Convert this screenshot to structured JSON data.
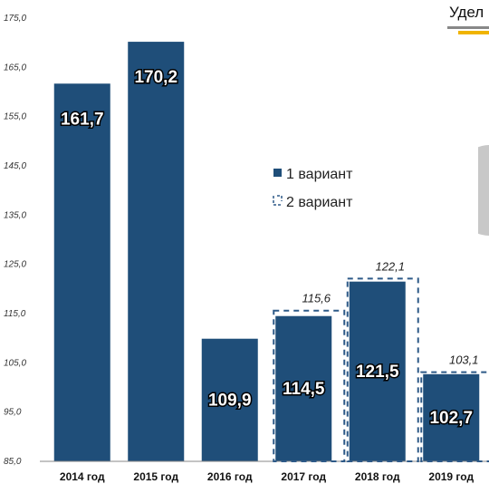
{
  "header": {
    "title_fragment": "Удел"
  },
  "colors": {
    "bar": "#1f4e79",
    "alt_outline": "#2e5a88",
    "grid": "#d9d9d9",
    "accent": "#f0b400",
    "decoration": "#c8c8c8"
  },
  "chart_data": {
    "type": "bar",
    "categories": [
      "2014 год",
      "2015 год",
      "2016 год",
      "2017 год",
      "2018 год",
      "2019 год"
    ],
    "series": [
      {
        "name": "1 вариант",
        "values": [
          161.7,
          170.2,
          109.9,
          114.5,
          121.5,
          102.7
        ]
      },
      {
        "name": "2 вариант",
        "values": [
          null,
          null,
          null,
          115.6,
          122.1,
          103.1
        ]
      }
    ],
    "value_labels": [
      "161,7",
      "170,2",
      "109,9",
      "114,5",
      "121,5",
      "102,7"
    ],
    "alt_value_labels": [
      "",
      "",
      "",
      "115,6",
      "122,1",
      "103,1"
    ],
    "ylim": [
      85,
      175
    ],
    "yticks": [
      85,
      95,
      105,
      115,
      125,
      135,
      145,
      155,
      165,
      175
    ],
    "ytick_labels": [
      "85,0",
      "95,0",
      "105,0",
      "115,0",
      "125,0",
      "135,0",
      "145,0",
      "155,0",
      "165,0",
      "175,0"
    ],
    "grid": false,
    "legend": {
      "position": "center-right",
      "entries": [
        "1 вариант",
        "2 вариант"
      ]
    }
  }
}
